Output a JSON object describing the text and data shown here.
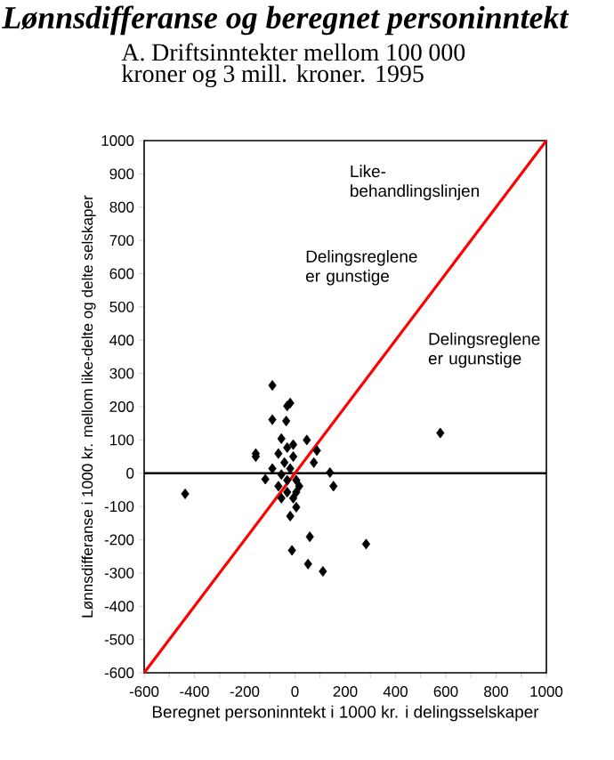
{
  "chart_data": {
    "type": "scatter",
    "title": "Lønnsdifferanse og beregnet personinntekt",
    "subtitle": "A. Driftsinntekter mellom 100 000 kroner og 3 mill. kroner. 1995",
    "xlabel": "Beregnet personinntekt i 1000 kr. i delingsselskaper",
    "ylabel": "Lønnsdifferanse i 1000 kr. mellom like-delte og delte selskaper",
    "xlim": [
      -600,
      1000
    ],
    "ylim": [
      -600,
      1000
    ],
    "xticks": [
      -600,
      {
        "value": -500,
        "label": null
      },
      -400,
      {
        "value": -300,
        "label": null
      },
      -200,
      {
        "value": -100,
        "label": null
      },
      0,
      {
        "value": 100,
        "label": null
      },
      200,
      {
        "value": 300,
        "label": null
      },
      400,
      {
        "value": 500,
        "label": null
      },
      600,
      {
        "value": 700,
        "label": null
      },
      800,
      {
        "value": 900,
        "label": null
      },
      1000
    ],
    "yticks": [
      -600,
      -500,
      -400,
      -300,
      -200,
      -100,
      0,
      100,
      200,
      300,
      400,
      500,
      600,
      700,
      800,
      900,
      1000
    ],
    "grid": false,
    "series": [
      {
        "color": "#000000",
        "marker": "diamond",
        "x": [
          -437,
          578,
          283,
          59,
          52,
          111,
          -12,
          153,
          139,
          75,
          87,
          47,
          -156,
          -156,
          -90,
          -35,
          -118,
          -90,
          -19,
          5,
          -90,
          -31,
          -19,
          -54,
          -31,
          -66,
          -7,
          -42,
          -19,
          5,
          17,
          -31,
          -54,
          -7,
          5,
          -66,
          -31,
          -7,
          -54
        ],
        "values": [
          -62,
          121,
          -213,
          -191,
          -273,
          -295,
          -232,
          -39,
          2,
          32,
          68,
          100,
          59,
          50,
          161,
          157,
          -18,
          14,
          -129,
          -102,
          264,
          202,
          211,
          104,
          77,
          59,
          86,
          32,
          14,
          -21,
          -39,
          -57,
          -75,
          -75,
          -57,
          -39,
          -21,
          50,
          -4
        ]
      },
      {
        "type": "line",
        "color": "#ff0000",
        "marker": "none",
        "x": [
          -600,
          1000
        ],
        "values": [
          -600,
          1000
        ]
      }
    ],
    "ref_lines": [
      {
        "axis": "y",
        "value": 0,
        "color": "#000000"
      }
    ],
    "annotations": [
      "Like-behandlingslinjen",
      "Delingsreglene er gunstige",
      "Delingsreglene er ugunstige"
    ]
  }
}
